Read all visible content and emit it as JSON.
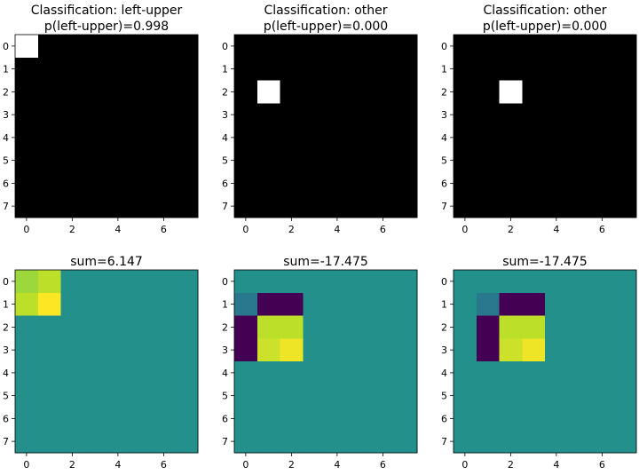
{
  "chart_data": [
    {
      "type": "heatmap",
      "title_lines": [
        "Classification: left-upper",
        "p(left-upper)=0.998"
      ],
      "colormap": "gray",
      "vmin": 0,
      "vmax": 1,
      "xticks": [
        0,
        2,
        4,
        6
      ],
      "yticks": [
        0,
        1,
        2,
        3,
        4,
        5,
        6,
        7
      ],
      "values": [
        [
          1,
          0,
          0,
          0,
          0,
          0,
          0,
          0
        ],
        [
          0,
          0,
          0,
          0,
          0,
          0,
          0,
          0
        ],
        [
          0,
          0,
          0,
          0,
          0,
          0,
          0,
          0
        ],
        [
          0,
          0,
          0,
          0,
          0,
          0,
          0,
          0
        ],
        [
          0,
          0,
          0,
          0,
          0,
          0,
          0,
          0
        ],
        [
          0,
          0,
          0,
          0,
          0,
          0,
          0,
          0
        ],
        [
          0,
          0,
          0,
          0,
          0,
          0,
          0,
          0
        ],
        [
          0,
          0,
          0,
          0,
          0,
          0,
          0,
          0
        ]
      ]
    },
    {
      "type": "heatmap",
      "title_lines": [
        "Classification: other",
        "p(left-upper)=0.000"
      ],
      "colormap": "gray",
      "vmin": 0,
      "vmax": 1,
      "xticks": [
        0,
        2,
        4,
        6
      ],
      "yticks": [
        0,
        1,
        2,
        3,
        4,
        5,
        6,
        7
      ],
      "values": [
        [
          0,
          0,
          0,
          0,
          0,
          0,
          0,
          0
        ],
        [
          0,
          0,
          0,
          0,
          0,
          0,
          0,
          0
        ],
        [
          0,
          1,
          0,
          0,
          0,
          0,
          0,
          0
        ],
        [
          0,
          0,
          0,
          0,
          0,
          0,
          0,
          0
        ],
        [
          0,
          0,
          0,
          0,
          0,
          0,
          0,
          0
        ],
        [
          0,
          0,
          0,
          0,
          0,
          0,
          0,
          0
        ],
        [
          0,
          0,
          0,
          0,
          0,
          0,
          0,
          0
        ],
        [
          0,
          0,
          0,
          0,
          0,
          0,
          0,
          0
        ]
      ]
    },
    {
      "type": "heatmap",
      "title_lines": [
        "Classification: other",
        "p(left-upper)=0.000"
      ],
      "colormap": "gray",
      "vmin": 0,
      "vmax": 1,
      "xticks": [
        0,
        2,
        4,
        6
      ],
      "yticks": [
        0,
        1,
        2,
        3,
        4,
        5,
        6,
        7
      ],
      "values": [
        [
          0,
          0,
          0,
          0,
          0,
          0,
          0,
          0
        ],
        [
          0,
          0,
          0,
          0,
          0,
          0,
          0,
          0
        ],
        [
          0,
          0,
          1,
          0,
          0,
          0,
          0,
          0
        ],
        [
          0,
          0,
          0,
          0,
          0,
          0,
          0,
          0
        ],
        [
          0,
          0,
          0,
          0,
          0,
          0,
          0,
          0
        ],
        [
          0,
          0,
          0,
          0,
          0,
          0,
          0,
          0
        ],
        [
          0,
          0,
          0,
          0,
          0,
          0,
          0,
          0
        ],
        [
          0,
          0,
          0,
          0,
          0,
          0,
          0,
          0
        ]
      ]
    },
    {
      "type": "heatmap",
      "title_lines": [
        "sum=6.147"
      ],
      "colormap": "viridis",
      "vmin": -1,
      "vmax": 1,
      "xticks": [
        0,
        2,
        4,
        6
      ],
      "yticks": [
        0,
        1,
        2,
        3,
        4,
        5,
        6,
        7
      ],
      "values": [
        [
          0.7,
          0.8,
          0,
          0,
          0,
          0,
          0,
          0
        ],
        [
          0.8,
          1.0,
          0,
          0,
          0,
          0,
          0,
          0
        ],
        [
          0,
          0,
          0,
          0,
          0,
          0,
          0,
          0
        ],
        [
          0,
          0,
          0,
          0,
          0,
          0,
          0,
          0
        ],
        [
          0,
          0,
          0,
          0,
          0,
          0,
          0,
          0
        ],
        [
          0,
          0,
          0,
          0,
          0,
          0,
          0,
          0
        ],
        [
          0,
          0,
          0,
          0,
          0,
          0,
          0,
          0
        ],
        [
          0,
          0,
          0,
          0,
          0,
          0,
          0,
          0
        ]
      ]
    },
    {
      "type": "heatmap",
      "title_lines": [
        "sum=-17.475"
      ],
      "colormap": "viridis",
      "vmin": -1,
      "vmax": 1,
      "xticks": [
        0,
        2,
        4,
        6
      ],
      "yticks": [
        0,
        1,
        2,
        3,
        4,
        5,
        6,
        7
      ],
      "values": [
        [
          0,
          0,
          0,
          0,
          0,
          0,
          0,
          0
        ],
        [
          -0.2,
          -1,
          -1,
          0,
          0,
          0,
          0,
          0
        ],
        [
          -1,
          0.8,
          0.8,
          0,
          0,
          0,
          0,
          0
        ],
        [
          -1,
          0.85,
          0.95,
          0,
          0,
          0,
          0,
          0
        ],
        [
          0,
          0,
          0,
          0,
          0,
          0,
          0,
          0
        ],
        [
          0,
          0,
          0,
          0,
          0,
          0,
          0,
          0
        ],
        [
          0,
          0,
          0,
          0,
          0,
          0,
          0,
          0
        ],
        [
          0,
          0,
          0,
          0,
          0,
          0,
          0,
          0
        ]
      ]
    },
    {
      "type": "heatmap",
      "title_lines": [
        "sum=-17.475"
      ],
      "colormap": "viridis",
      "vmin": -1,
      "vmax": 1,
      "xticks": [
        0,
        2,
        4,
        6
      ],
      "yticks": [
        0,
        1,
        2,
        3,
        4,
        5,
        6,
        7
      ],
      "values": [
        [
          0,
          0,
          0,
          0,
          0,
          0,
          0,
          0
        ],
        [
          0,
          -0.2,
          -1,
          -1,
          0,
          0,
          0,
          0
        ],
        [
          0,
          -1,
          0.8,
          0.8,
          0,
          0,
          0,
          0
        ],
        [
          0,
          -1,
          0.85,
          0.95,
          0,
          0,
          0,
          0
        ],
        [
          0,
          0,
          0,
          0,
          0,
          0,
          0,
          0
        ],
        [
          0,
          0,
          0,
          0,
          0,
          0,
          0,
          0
        ],
        [
          0,
          0,
          0,
          0,
          0,
          0,
          0,
          0
        ],
        [
          0,
          0,
          0,
          0,
          0,
          0,
          0,
          0
        ]
      ]
    }
  ]
}
